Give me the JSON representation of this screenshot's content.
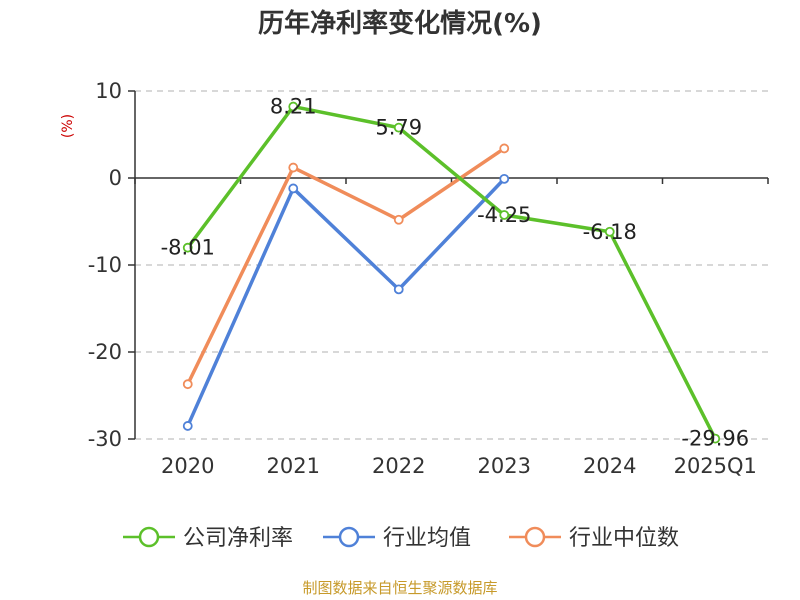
{
  "chart_data": {
    "type": "line",
    "title": "历年净利率变化情况(%)",
    "ylabel": "(%)",
    "categories": [
      "2020",
      "2021",
      "2022",
      "2023",
      "2024",
      "2025Q1"
    ],
    "ylim": [
      -30,
      10
    ],
    "yticks": [
      10,
      0,
      -10,
      -20,
      -30
    ],
    "grid": true,
    "legend_position": "bottom",
    "series": [
      {
        "name": "公司净利率",
        "color": "#5cc02a",
        "values": [
          -8.01,
          8.21,
          5.79,
          -4.25,
          -6.18,
          -29.96
        ],
        "labels": [
          "-8.01",
          "8.21",
          "5.79",
          "-4.25",
          "-6.18",
          "-29.96"
        ]
      },
      {
        "name": "行业均值",
        "color": "#4f81d8",
        "values": [
          -28.5,
          -1.2,
          -12.8,
          -0.1,
          null,
          null
        ]
      },
      {
        "name": "行业中位数",
        "color": "#f08c5a",
        "values": [
          -23.7,
          1.2,
          -4.8,
          3.4,
          null,
          null
        ]
      }
    ]
  },
  "source": "制图数据来自恒生聚源数据库"
}
